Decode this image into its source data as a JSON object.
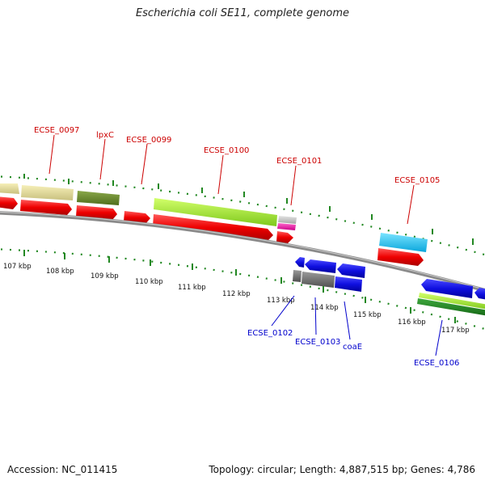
{
  "title": "Escherichia coli SE11, complete genome",
  "footer": {
    "accession": "Accession: NC_011415",
    "stats": "Topology: circular; Length: 4,887,515 bp; Genes: 4,786"
  },
  "colors": {
    "forward_label": "#cc0000",
    "reverse_label": "#0000cc",
    "backbone": "#888888",
    "tick": "#228822"
  },
  "ticks": [
    "107 kbp",
    "108 kbp",
    "109 kbp",
    "110 kbp",
    "111 kbp",
    "112 kbp",
    "113 kbp",
    "114 kbp",
    "115 kbp",
    "116 kbp",
    "117 kbp"
  ],
  "gene_labels": [
    {
      "text": "ECSE_0097",
      "strand": "forward"
    },
    {
      "text": "lpxC",
      "strand": "forward"
    },
    {
      "text": "ECSE_0099",
      "strand": "forward"
    },
    {
      "text": "ECSE_0100",
      "strand": "forward"
    },
    {
      "text": "ECSE_0101",
      "strand": "forward"
    },
    {
      "text": "ECSE_0105",
      "strand": "forward"
    },
    {
      "text": "ECSE_0102",
      "strand": "reverse"
    },
    {
      "text": "ECSE_0103",
      "strand": "reverse"
    },
    {
      "text": "coaE",
      "strand": "reverse"
    },
    {
      "text": "ECSE_0106",
      "strand": "reverse"
    }
  ]
}
